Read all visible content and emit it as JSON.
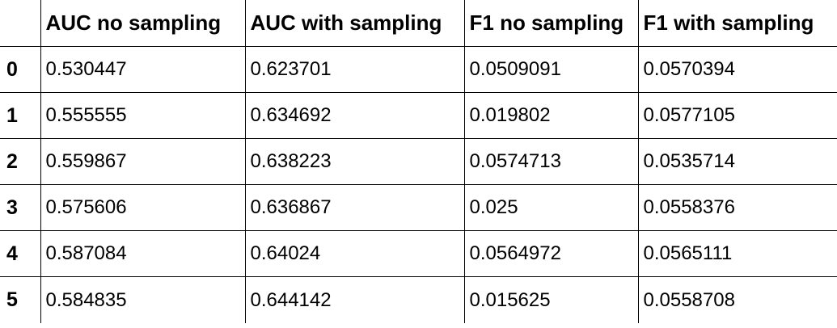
{
  "table": {
    "columns": [
      "",
      "AUC no sampling",
      "AUC with sampling",
      "F1 no sampling",
      "F1 with sampling"
    ],
    "rows": [
      {
        "index": "0",
        "values": [
          "0.530447",
          "0.623701",
          "0.0509091",
          "0.0570394"
        ]
      },
      {
        "index": "1",
        "values": [
          "0.555555",
          "0.634692",
          "0.019802",
          "0.0577105"
        ]
      },
      {
        "index": "2",
        "values": [
          "0.559867",
          "0.638223",
          "0.0574713",
          "0.0535714"
        ]
      },
      {
        "index": "3",
        "values": [
          "0.575606",
          "0.636867",
          "0.025",
          "0.0558376"
        ]
      },
      {
        "index": "4",
        "values": [
          "0.587084",
          "0.64024",
          "0.0564972",
          "0.0565111"
        ]
      },
      {
        "index": "5",
        "values": [
          "0.584835",
          "0.644142",
          "0.015625",
          "0.0558708"
        ]
      }
    ]
  }
}
